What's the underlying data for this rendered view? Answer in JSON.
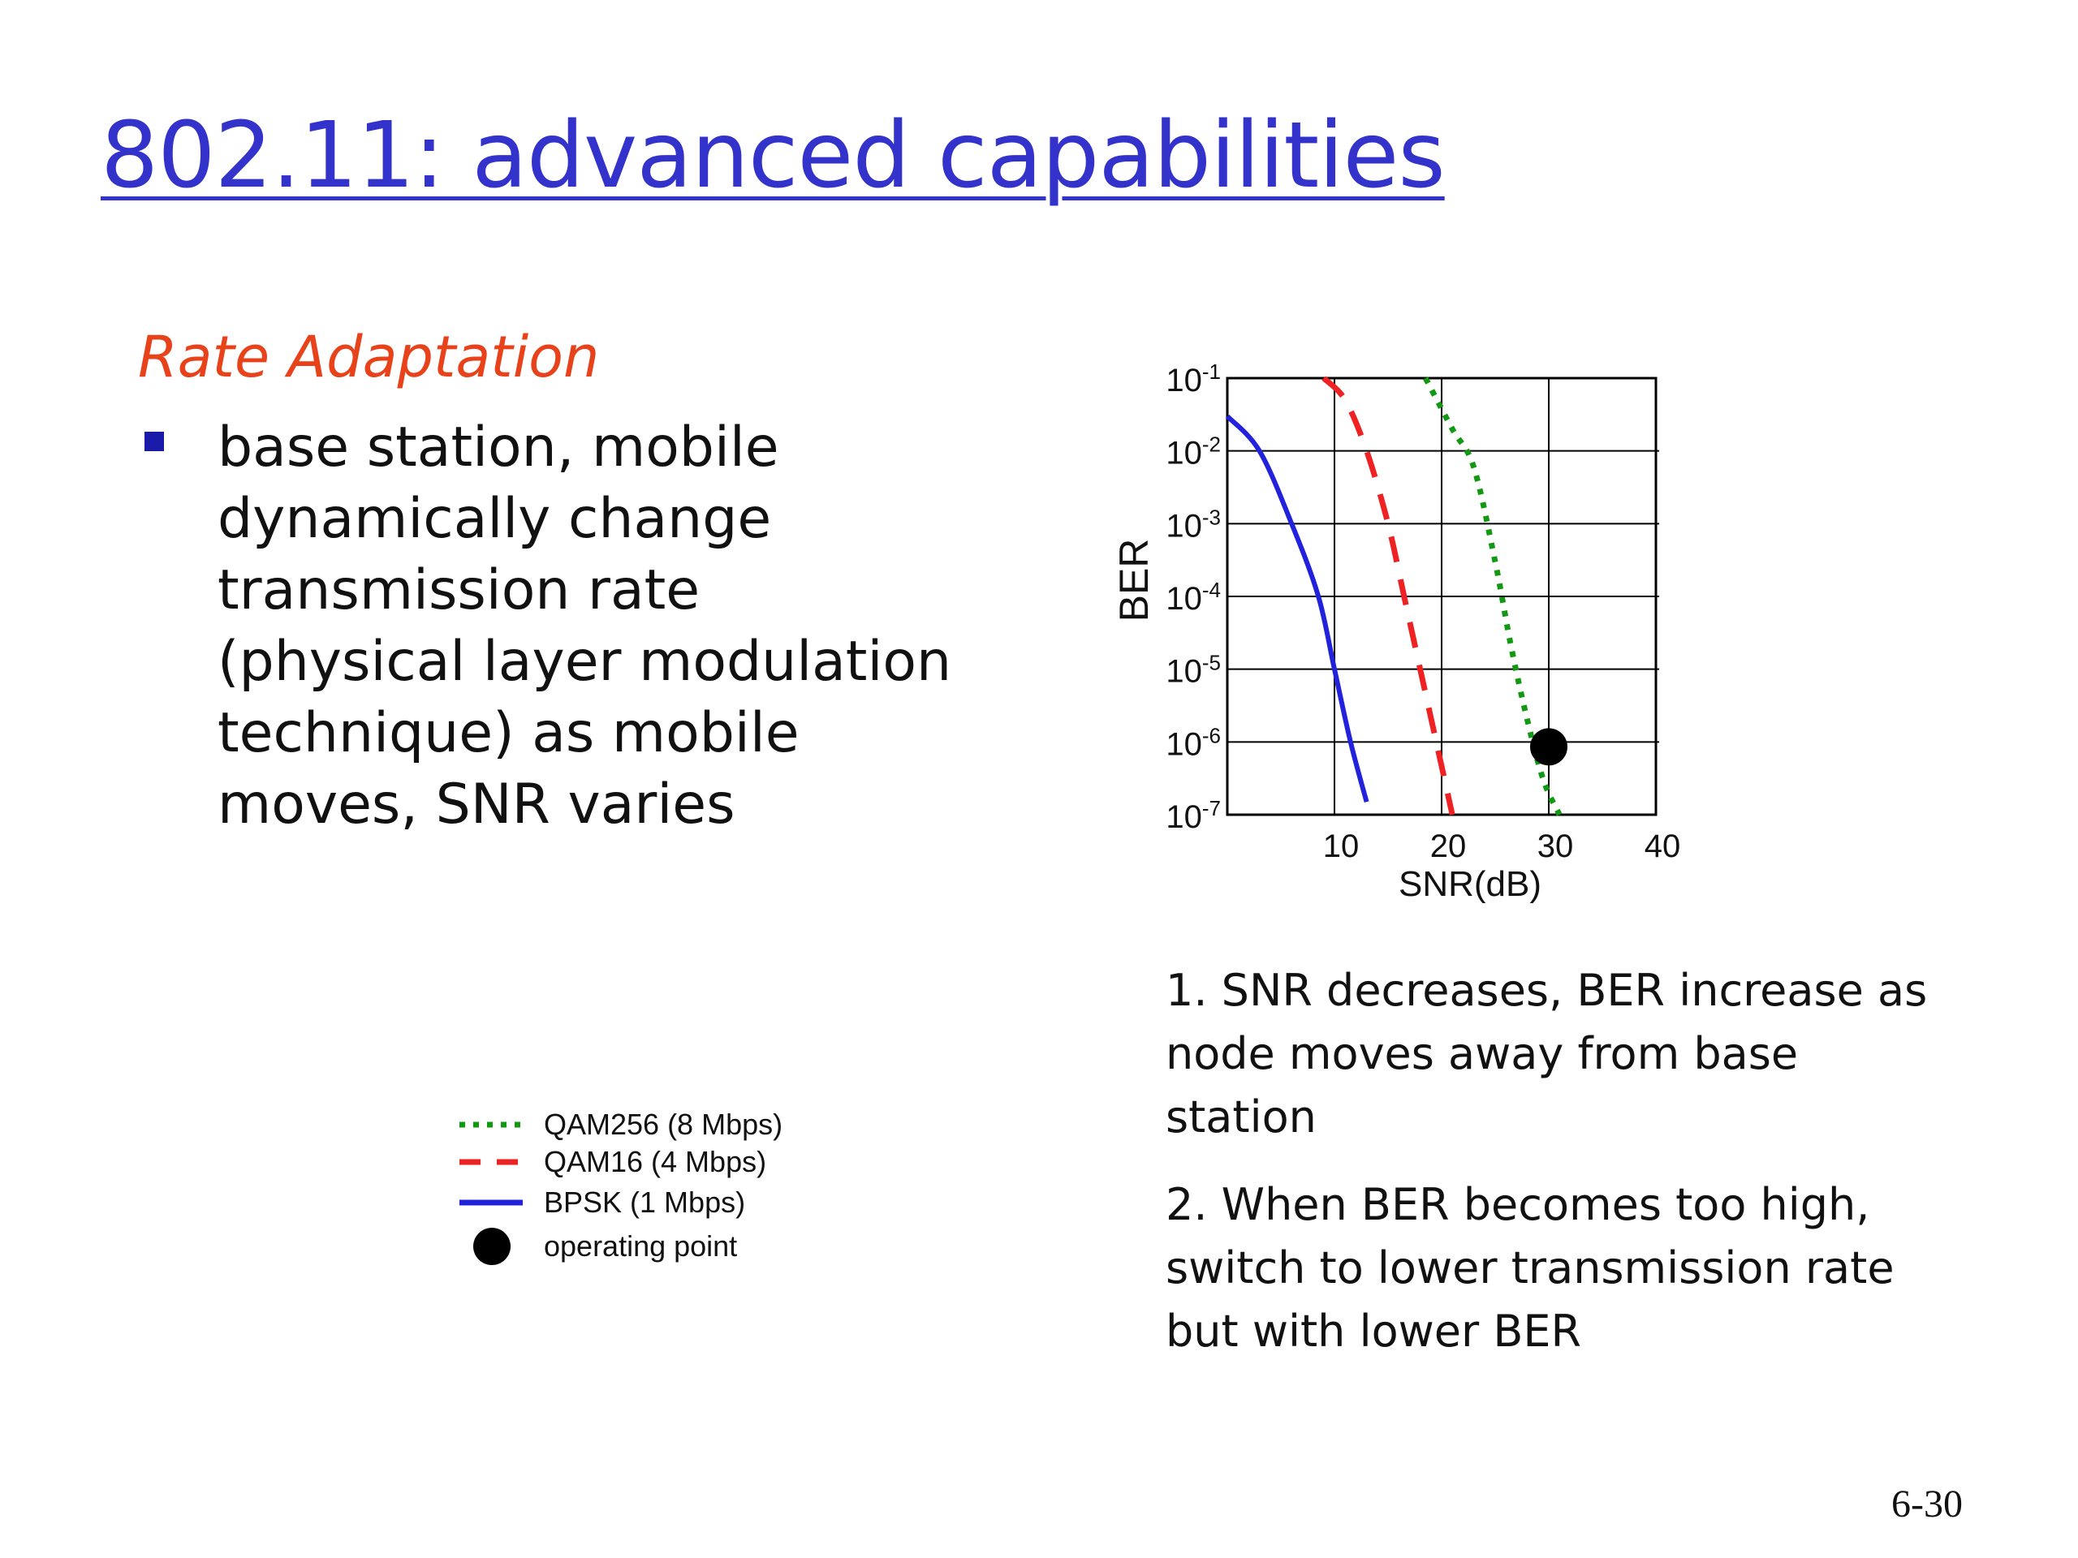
{
  "slide": {
    "title": "802.11: advanced capabilities",
    "subtitle": "Rate Adaptation",
    "bullet": "base station, mobile\ndynamically change\ntransmission rate\n(physical layer modulation\ntechnique) as mobile\nmoves, SNR varies",
    "notes": [
      "1. SNR decreases, BER increase as node moves away from base station",
      "2. When BER becomes too high, switch to lower transmission rate but with lower BER"
    ],
    "page_number": "6-30",
    "colors": {
      "title": "#3333cc",
      "subtitle": "#e8421b",
      "bullet": "#1a1aa8"
    }
  },
  "chart_data": {
    "type": "line",
    "xlabel": "SNR(dB)",
    "ylabel": "BER",
    "xlim": [
      0,
      40
    ],
    "x_ticks": [
      10,
      20,
      30,
      40
    ],
    "y_scale": "log",
    "ylim": [
      1e-07,
      0.1
    ],
    "y_tick_exponents": [
      -1,
      -2,
      -3,
      -4,
      -5,
      -6,
      -7
    ],
    "grid": true,
    "legend_position": "bottom-left",
    "series": [
      {
        "name": "QAM256 (8 Mbps)",
        "style": "dotted",
        "color": "#119911",
        "points": [
          [
            18.5,
            0.1
          ],
          [
            21,
            0.02
          ],
          [
            23,
            0.006
          ],
          [
            25,
            0.0003
          ],
          [
            26.5,
            2e-05
          ],
          [
            28,
            2e-06
          ],
          [
            29.5,
            3e-07
          ],
          [
            31,
            1e-07
          ]
        ]
      },
      {
        "name": "QAM16 (4 Mbps)",
        "style": "dashed",
        "color": "#ee2222",
        "points": [
          [
            9,
            0.1
          ],
          [
            11,
            0.05
          ],
          [
            13,
            0.01
          ],
          [
            15,
            0.001
          ],
          [
            16.5,
            0.0001
          ],
          [
            18,
            1e-05
          ],
          [
            19.5,
            1e-06
          ],
          [
            21,
            1e-07
          ]
        ]
      },
      {
        "name": "BPSK (1 Mbps)",
        "style": "solid",
        "color": "#2222dd",
        "points": [
          [
            0,
            0.03
          ],
          [
            3,
            0.01
          ],
          [
            6,
            0.001
          ],
          [
            8.5,
            0.0001
          ],
          [
            10,
            1e-05
          ],
          [
            11.5,
            1e-06
          ],
          [
            13,
            1.5e-07
          ]
        ]
      }
    ],
    "operating_point": {
      "name": "operating point",
      "x": 30,
      "y": 1e-06,
      "color": "#000000"
    }
  }
}
